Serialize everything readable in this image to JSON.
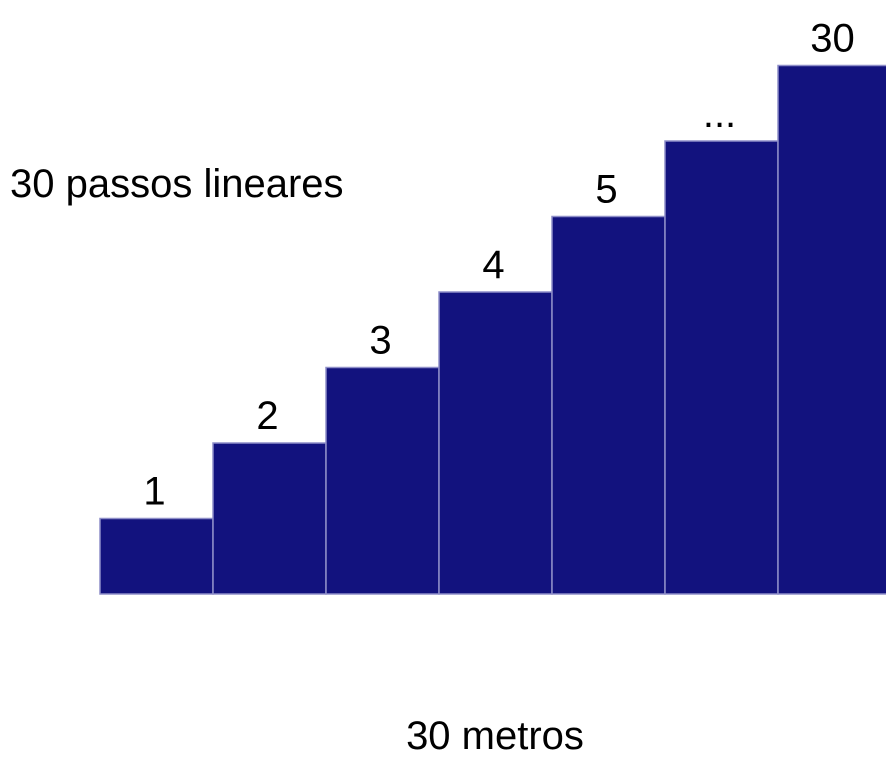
{
  "diagram": {
    "title": "30 passos lineares",
    "footer": "30 metros",
    "fill_color": "#12127E",
    "edge_color": "#8E8EC8",
    "steps": [
      {
        "label": "1",
        "level": 1
      },
      {
        "label": "2",
        "level": 2
      },
      {
        "label": "3",
        "level": 3
      },
      {
        "label": "4",
        "level": 4
      },
      {
        "label": "5",
        "level": 5
      },
      {
        "label": "...",
        "level": 6
      },
      {
        "label": "30",
        "level": 7
      }
    ]
  }
}
